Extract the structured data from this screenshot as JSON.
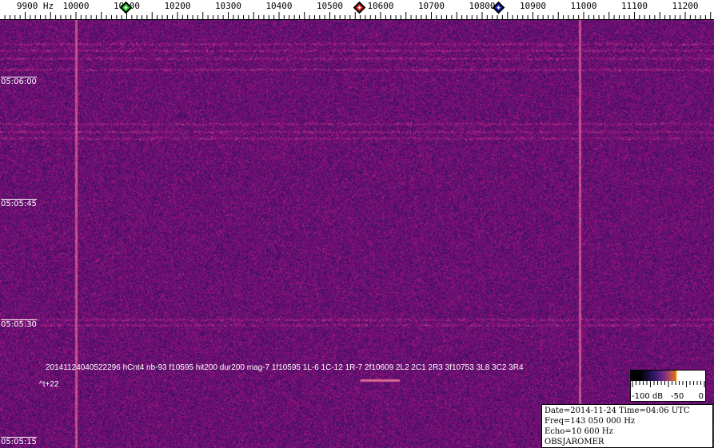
{
  "frequency_axis": {
    "unit_label": "9900 Hz",
    "labels": [
      "10000",
      "10100",
      "10200",
      "10300",
      "10400",
      "10500",
      "10600",
      "10700",
      "10800",
      "10900",
      "11000",
      "11100",
      "11200"
    ]
  },
  "markers": [
    {
      "name": "green-marker",
      "color": "#22cc22"
    },
    {
      "name": "red-marker",
      "color": "#dd2222"
    },
    {
      "name": "blue-marker",
      "color": "#1122cc"
    }
  ],
  "time_axis": {
    "labels": [
      "05:06:00",
      "05:05:45",
      "05:05:30",
      "05:05:15"
    ]
  },
  "detection": {
    "line": "20141124040522296 hCnt4 nb-93 f10595 hit200 dur200 mag-7 1f10595 1L-6 1C-12 1R-7 2f10609 2L2 2C1 2R3 3f10753 3L8 3C2 3R4",
    "offset": "^t+22"
  },
  "colorbar": {
    "labels": [
      "-100 dB",
      "-50",
      "0"
    ]
  },
  "info": {
    "date_time": "Date=2014-11-24 Time=04:06 UTC",
    "freq": "Freq=143 050 000 Hz",
    "echo": "Echo=10 600 Hz",
    "observer": "OBSJAROMER"
  }
}
